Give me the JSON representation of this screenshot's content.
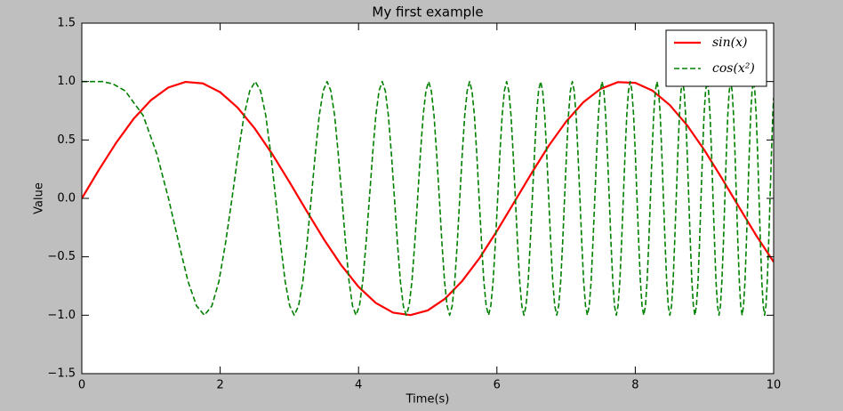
{
  "chart_data": {
    "type": "line",
    "title": "My first example",
    "x_label": "Time(s)",
    "y_label": "Value",
    "xlim": [
      0,
      10
    ],
    "ylim": [
      -1.5,
      1.5
    ],
    "xticks": [
      0,
      2,
      4,
      6,
      8,
      10
    ],
    "yticks": [
      {
        "value": -1.5,
        "label": "−1.5"
      },
      {
        "value": -1.0,
        "label": "−1.0"
      },
      {
        "value": -0.5,
        "label": "−0.5"
      },
      {
        "value": 0,
        "label": "0.0"
      },
      {
        "value": 0.5,
        "label": "0.5"
      },
      {
        "value": 1.0,
        "label": "1.0"
      },
      {
        "value": 1.5,
        "label": "1.5"
      }
    ],
    "grid": false,
    "legend": "upper right",
    "series": [
      {
        "name": "sin(x)",
        "color": "#ff0000",
        "style": "solid",
        "x": [
          0,
          0.25,
          0.5,
          0.75,
          1,
          1.25,
          1.5,
          1.75,
          2,
          2.25,
          2.5,
          2.75,
          3,
          3.25,
          3.5,
          3.75,
          4,
          4.25,
          4.5,
          4.75,
          5,
          5.25,
          5.5,
          5.75,
          6,
          6.25,
          6.5,
          6.75,
          7,
          7.25,
          7.5,
          7.75,
          8,
          8.25,
          8.5,
          8.75,
          9,
          9.25,
          9.5,
          9.75,
          10
        ],
        "values": [
          0,
          0.247,
          0.479,
          0.682,
          0.841,
          0.949,
          0.997,
          0.984,
          0.909,
          0.778,
          0.598,
          0.382,
          0.141,
          -0.108,
          -0.351,
          -0.572,
          -0.757,
          -0.895,
          -0.978,
          -0.999,
          -0.959,
          -0.859,
          -0.706,
          -0.51,
          -0.279,
          -0.033,
          0.215,
          0.451,
          0.657,
          0.823,
          0.938,
          0.995,
          0.989,
          0.922,
          0.798,
          0.625,
          0.412,
          0.174,
          -0.075,
          -0.319,
          -0.544
        ]
      },
      {
        "name": "cos(x²)",
        "color": "#008000",
        "style": "dashed",
        "x": [
          0,
          0.3,
          0.45,
          0.627,
          0.886,
          1.085,
          1.253,
          1.401,
          1.535,
          1.658,
          1.772,
          1.88,
          1.982,
          2.078,
          2.171,
          2.259,
          2.345,
          2.427,
          2.507,
          2.584,
          2.659,
          2.732,
          2.802,
          2.872,
          2.939,
          3.005,
          3.07,
          3.133,
          3.195,
          3.256,
          3.316,
          3.375,
          3.432,
          3.489,
          3.545,
          3.6,
          3.654,
          3.707,
          3.76,
          3.812,
          3.863,
          3.913,
          3.963,
          4.013,
          4.061,
          4.109,
          4.157,
          4.204,
          4.25,
          4.296,
          4.342,
          4.387,
          4.431,
          4.475,
          4.519,
          4.562,
          4.605,
          4.647,
          4.689,
          4.731,
          4.772,
          4.813,
          4.854,
          4.894,
          4.934,
          4.974,
          5.013,
          5.052,
          5.091,
          5.129,
          5.168,
          5.205,
          5.243,
          5.28,
          5.317,
          5.354,
          5.391,
          5.427,
          5.463,
          5.499,
          5.535,
          5.57,
          5.605,
          5.64,
          5.675,
          5.709,
          5.743,
          5.778,
          5.811,
          5.845,
          5.879,
          5.912,
          5.945,
          5.978,
          6.011,
          6.043,
          6.076,
          6.108,
          6.14,
          6.172,
          6.204,
          6.235,
          6.267,
          6.298,
          6.329,
          6.36,
          6.391,
          6.421,
          6.452,
          6.482,
          6.512,
          6.543,
          6.572,
          6.602,
          6.632,
          6.661,
          6.691,
          6.72,
          6.749,
          6.778,
          6.807,
          6.836,
          6.865,
          6.893,
          6.922,
          6.95,
          6.978,
          7.006,
          7.034,
          7.062,
          7.09,
          7.117,
          7.145,
          7.172,
          7.2,
          7.227,
          7.254,
          7.281,
          7.308,
          7.335,
          7.362,
          7.388,
          7.415,
          7.441,
          7.467,
          7.494,
          7.52,
          7.546,
          7.572,
          7.598,
          7.624,
          7.649,
          7.675,
          7.7,
          7.726,
          7.751,
          7.777,
          7.802,
          7.827,
          7.852,
          7.877,
          7.902,
          7.927,
          7.951,
          7.976,
          8.001,
          8.025,
          8.05,
          8.074,
          8.098,
          8.122,
          8.147,
          8.171,
          8.195,
          8.219,
          8.242,
          8.266,
          8.29,
          8.314,
          8.337,
          8.361,
          8.384,
          8.407,
          8.431,
          8.454,
          8.477,
          8.5,
          8.524,
          8.547,
          8.569,
          8.592,
          8.615,
          8.638,
          8.661,
          8.683,
          8.706,
          8.728,
          8.751,
          8.773,
          8.796,
          8.818,
          8.84,
          8.862,
          8.884,
          8.907,
          8.929,
          8.95,
          8.972,
          8.994,
          9.016,
          9.038,
          9.059,
          9.081,
          9.103,
          9.124,
          9.146,
          9.167,
          9.189,
          9.21,
          9.231,
          9.252,
          9.274,
          9.295,
          9.316,
          9.337,
          9.358,
          9.379,
          9.4,
          9.421,
          9.442,
          9.462,
          9.483,
          9.504,
          9.524,
          9.545,
          9.565,
          9.586,
          9.606,
          9.627,
          9.647,
          9.668,
          9.688,
          9.708,
          9.728,
          9.748,
          9.769,
          9.789,
          9.809,
          9.829,
          9.849,
          9.869,
          9.889,
          9.908,
          9.928,
          9.948,
          9.968,
          9.987,
          10
        ],
        "values": [
          1,
          1,
          0.98,
          0.92,
          0.71,
          0.38,
          0,
          -0.38,
          -0.71,
          -0.92,
          -1,
          -0.92,
          -0.71,
          -0.38,
          0,
          0.38,
          0.71,
          0.92,
          1,
          0.92,
          0.71,
          0.38,
          0,
          -0.38,
          -0.71,
          -0.92,
          -1,
          -0.92,
          -0.71,
          -0.38,
          0,
          0.38,
          0.71,
          0.92,
          1,
          0.92,
          0.71,
          0.38,
          0,
          -0.38,
          -0.71,
          -0.92,
          -1,
          -0.92,
          -0.71,
          -0.38,
          0,
          0.38,
          0.71,
          0.92,
          1,
          0.92,
          0.71,
          0.38,
          0,
          -0.38,
          -0.71,
          -0.92,
          -1,
          -0.92,
          -0.71,
          -0.38,
          0,
          0.38,
          0.71,
          0.92,
          1,
          0.92,
          0.71,
          0.38,
          0,
          -0.38,
          -0.71,
          -0.92,
          -1,
          -0.92,
          -0.71,
          -0.38,
          0,
          0.38,
          0.71,
          0.92,
          1,
          0.92,
          0.71,
          0.38,
          0,
          -0.38,
          -0.71,
          -0.92,
          -1,
          -0.92,
          -0.71,
          -0.38,
          0,
          0.38,
          0.71,
          0.92,
          1,
          0.92,
          0.71,
          0.38,
          0,
          -0.38,
          -0.71,
          -0.92,
          -1,
          -0.92,
          -0.71,
          -0.38,
          0,
          0.38,
          0.71,
          0.92,
          1,
          0.92,
          0.71,
          0.38,
          0,
          -0.38,
          -0.71,
          -0.92,
          -1,
          -0.92,
          -0.71,
          -0.38,
          0,
          0.38,
          0.71,
          0.92,
          1,
          0.92,
          0.71,
          0.38,
          0,
          -0.38,
          -0.71,
          -0.92,
          -1,
          -0.92,
          -0.71,
          -0.38,
          0,
          0.38,
          0.71,
          0.92,
          1,
          0.92,
          0.71,
          0.38,
          0,
          -0.38,
          -0.71,
          -0.92,
          -1,
          -0.92,
          -0.71,
          -0.38,
          0,
          0.38,
          0.71,
          0.92,
          1,
          0.92,
          0.71,
          0.38,
          0,
          -0.38,
          -0.71,
          -0.92,
          -1,
          -0.92,
          -0.71,
          -0.38,
          0,
          0.38,
          0.71,
          0.92,
          1,
          0.92,
          0.71,
          0.38,
          0,
          -0.38,
          -0.71,
          -0.92,
          -1,
          -0.92,
          -0.71,
          -0.38,
          0,
          0.38,
          0.71,
          0.92,
          1,
          0.92,
          0.71,
          0.38,
          0,
          -0.38,
          -0.71,
          -0.92,
          -1,
          -0.92,
          -0.71,
          -0.38,
          0,
          0.38,
          0.71,
          0.92,
          1,
          0.92,
          0.71,
          0.38,
          0,
          -0.38,
          -0.71,
          -0.92,
          -1,
          -0.92,
          -0.71,
          -0.38,
          0,
          0.38,
          0.71,
          0.92,
          1,
          0.92,
          0.71,
          0.38,
          0,
          -0.38,
          -0.71,
          -0.92,
          -1,
          -0.92,
          -0.71,
          -0.38,
          0,
          0.38,
          0.71,
          0.92,
          1,
          0.92,
          0.71,
          0.38,
          0,
          -0.38,
          -0.71,
          -0.92,
          -1,
          -0.92,
          -0.71,
          -0.38,
          0,
          0.38,
          0.71,
          0.86
        ]
      }
    ]
  }
}
